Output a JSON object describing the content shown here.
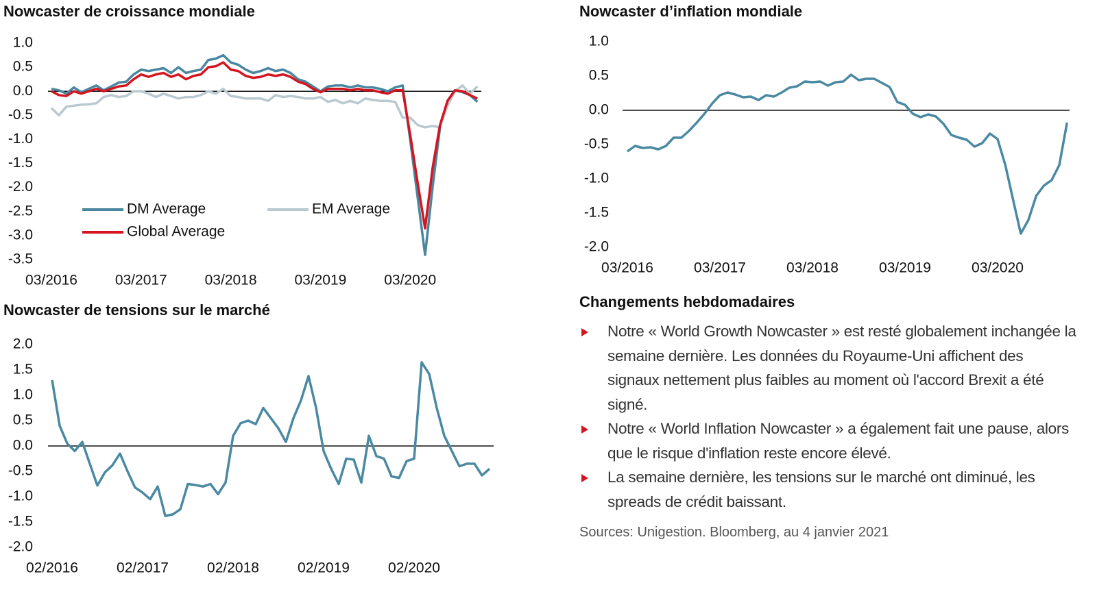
{
  "chart_data": [
    {
      "type": "line",
      "title": "Nowcaster de croissance mondiale",
      "categories": [
        "03/2016",
        null,
        null,
        null,
        null,
        null,
        null,
        null,
        null,
        null,
        null,
        null,
        "03/2017",
        null,
        null,
        null,
        null,
        null,
        null,
        null,
        null,
        null,
        null,
        null,
        "03/2018",
        null,
        null,
        null,
        null,
        null,
        null,
        null,
        null,
        null,
        null,
        null,
        "03/2019",
        null,
        null,
        null,
        null,
        null,
        null,
        null,
        null,
        null,
        null,
        null,
        "03/2020",
        null,
        null,
        null,
        null,
        null,
        null,
        null,
        null,
        null
      ],
      "series": [
        {
          "name": "DM Average",
          "color": "#4a86a0",
          "values": [
            0.05,
            0.02,
            -0.05,
            0.08,
            -0.02,
            0.05,
            0.12,
            0.02,
            0.1,
            0.18,
            0.2,
            0.35,
            0.45,
            0.42,
            0.45,
            0.48,
            0.38,
            0.5,
            0.38,
            0.42,
            0.45,
            0.65,
            0.68,
            0.75,
            0.6,
            0.55,
            0.45,
            0.38,
            0.42,
            0.48,
            0.42,
            0.45,
            0.38,
            0.25,
            0.2,
            0.1,
            0,
            0.1,
            0.12,
            0.12,
            0.08,
            0.12,
            0.08,
            0.08,
            0.05,
            0,
            0.08,
            0.12,
            -1.0,
            -2.2,
            -3.4,
            -2.0,
            -0.75,
            -0.2,
            0.02,
            -0.02,
            -0.08,
            -0.22
          ]
        },
        {
          "name": "EM Average",
          "color": "#b9c9cf",
          "values": [
            -0.35,
            -0.5,
            -0.32,
            -0.3,
            -0.28,
            -0.27,
            -0.25,
            -0.12,
            -0.08,
            -0.12,
            -0.1,
            0,
            0,
            -0.05,
            -0.12,
            -0.05,
            -0.1,
            -0.15,
            -0.12,
            -0.12,
            -0.08,
            0,
            -0.05,
            0.05,
            -0.1,
            -0.12,
            -0.15,
            -0.15,
            -0.15,
            -0.2,
            -0.08,
            -0.12,
            -0.1,
            -0.12,
            -0.15,
            -0.15,
            -0.12,
            -0.22,
            -0.18,
            -0.25,
            -0.2,
            -0.25,
            -0.15,
            -0.18,
            -0.2,
            -0.2,
            -0.22,
            -0.55,
            -0.55,
            -0.7,
            -0.75,
            -0.72,
            -0.75,
            -0.3,
            0,
            0.12,
            -0.05,
            0.1
          ]
        },
        {
          "name": "Global Average",
          "color": "#d4141f",
          "values": [
            0,
            -0.08,
            -0.1,
            0,
            -0.05,
            0,
            0.05,
            0,
            0.05,
            0.1,
            0.12,
            0.25,
            0.35,
            0.3,
            0.35,
            0.38,
            0.3,
            0.35,
            0.25,
            0.32,
            0.35,
            0.5,
            0.52,
            0.6,
            0.45,
            0.42,
            0.32,
            0.28,
            0.3,
            0.35,
            0.32,
            0.35,
            0.3,
            0.2,
            0.15,
            0.05,
            -0.02,
            0.05,
            0.05,
            0.05,
            0.02,
            0.05,
            0.02,
            0.02,
            -0.02,
            -0.05,
            0.02,
            0.02,
            -0.9,
            -1.9,
            -2.85,
            -1.6,
            -0.7,
            -0.2,
            0.02,
            0,
            -0.08,
            -0.15
          ]
        }
      ],
      "ylim": [
        -3.5,
        1.0
      ],
      "yticks": [
        {
          "value": 1.0,
          "label": "1.0"
        },
        0.5,
        {
          "value": 0,
          "label": "0.0"
        },
        -0.5,
        {
          "value": -1.0,
          "label": "-1.0"
        },
        -1.5,
        {
          "value": -2.0,
          "label": "-2.0"
        },
        -2.5,
        {
          "value": -3.0,
          "label": "-3.0"
        },
        -3.5
      ],
      "grid": false,
      "legend": "lower left"
    },
    {
      "type": "line",
      "title": "Nowcaster d’inflation mondiale",
      "categories": [
        "03/2016",
        null,
        null,
        null,
        null,
        null,
        null,
        null,
        null,
        null,
        null,
        null,
        "03/2017",
        null,
        null,
        null,
        null,
        null,
        null,
        null,
        null,
        null,
        null,
        null,
        "03/2018",
        null,
        null,
        null,
        null,
        null,
        null,
        null,
        null,
        null,
        null,
        null,
        "03/2019",
        null,
        null,
        null,
        null,
        null,
        null,
        null,
        null,
        null,
        null,
        null,
        "03/2020",
        null,
        null,
        null,
        null,
        null,
        null,
        null,
        null,
        null
      ],
      "color": "#4a89a2",
      "values": [
        -0.6,
        -0.52,
        -0.55,
        -0.54,
        -0.57,
        -0.52,
        -0.4,
        -0.4,
        -0.3,
        -0.18,
        -0.05,
        0.1,
        0.22,
        0.26,
        0.23,
        0.19,
        0.2,
        0.15,
        0.22,
        0.2,
        0.26,
        0.33,
        0.35,
        0.42,
        0.41,
        0.42,
        0.36,
        0.41,
        0.42,
        0.52,
        0.44,
        0.46,
        0.46,
        0.4,
        0.34,
        0.12,
        0.08,
        -0.05,
        -0.1,
        -0.06,
        -0.09,
        -0.2,
        -0.36,
        -0.4,
        -0.43,
        -0.53,
        -0.48,
        -0.34,
        -0.42,
        -0.8,
        -1.3,
        -1.8,
        -1.6,
        -1.25,
        -1.1,
        -1.02,
        -0.8,
        -0.18
      ],
      "ylim": [
        -2.0,
        1.0
      ],
      "yticks": [
        {
          "value": 1.0,
          "label": "1.0"
        },
        0.5,
        {
          "value": 0,
          "label": "0.0"
        },
        -0.5,
        {
          "value": -1.0,
          "label": "-1.0"
        },
        -1.5,
        {
          "value": -2.0,
          "label": "-2.0"
        }
      ],
      "grid": false
    },
    {
      "type": "line",
      "title": "Nowcaster de tensions sur le marché",
      "categories": [
        "02/2016",
        null,
        null,
        null,
        null,
        null,
        null,
        null,
        null,
        null,
        null,
        null,
        "02/2017",
        null,
        null,
        null,
        null,
        null,
        null,
        null,
        null,
        null,
        null,
        null,
        "02/2018",
        null,
        null,
        null,
        null,
        null,
        null,
        null,
        null,
        null,
        null,
        null,
        "02/2019",
        null,
        null,
        null,
        null,
        null,
        null,
        null,
        null,
        null,
        null,
        null,
        "02/2020",
        null,
        null,
        null,
        null,
        null,
        null,
        null,
        null,
        null,
        null
      ],
      "color": "#4a89a2",
      "values": [
        1.3,
        0.4,
        0.05,
        -0.1,
        0.08,
        -0.35,
        -0.78,
        -0.52,
        -0.38,
        -0.15,
        -0.5,
        -0.82,
        -0.92,
        -1.05,
        -0.8,
        -1.38,
        -1.35,
        -1.25,
        -0.75,
        -0.77,
        -0.8,
        -0.75,
        -0.95,
        -0.72,
        0.2,
        0.45,
        0.5,
        0.43,
        0.75,
        0.55,
        0.35,
        0.08,
        0.55,
        0.9,
        1.38,
        0.75,
        -0.1,
        -0.45,
        -0.75,
        -0.25,
        -0.27,
        -0.72,
        0.2,
        -0.2,
        -0.25,
        -0.6,
        -0.63,
        -0.3,
        -0.25,
        1.65,
        1.42,
        0.75,
        0.2,
        -0.1,
        -0.4,
        -0.35,
        -0.35,
        -0.58,
        -0.45
      ],
      "ylim": [
        -2.0,
        2.0
      ],
      "yticks": [
        {
          "value": 2.0,
          "label": "2.0"
        },
        1.5,
        {
          "value": 1.0,
          "label": "1.0"
        },
        0.5,
        {
          "value": 0,
          "label": "0.0"
        },
        -0.5,
        {
          "value": -1.0,
          "label": "-1.0"
        },
        -1.5,
        {
          "value": -2.0,
          "label": "-2.0"
        }
      ],
      "grid": false
    }
  ],
  "commentary": {
    "title": "Changements hebdomadaires",
    "bullets": [
      "Notre « World Growth Nowcaster » est resté globalement inchangée la semaine dernière. Les données du Royaume-Uni affichent des signaux nettement plus faibles au moment où l'accord Brexit a été signé.",
      "Notre « World Inflation Nowcaster » a également fait une pause, alors que le risque d'inflation reste encore élevé.",
      "La semaine dernière, les tensions sur le marché ont diminué, les spreads de crédit baissant."
    ],
    "source": "Sources: Unigestion. Bloomberg, au 4 janvier 2021"
  }
}
